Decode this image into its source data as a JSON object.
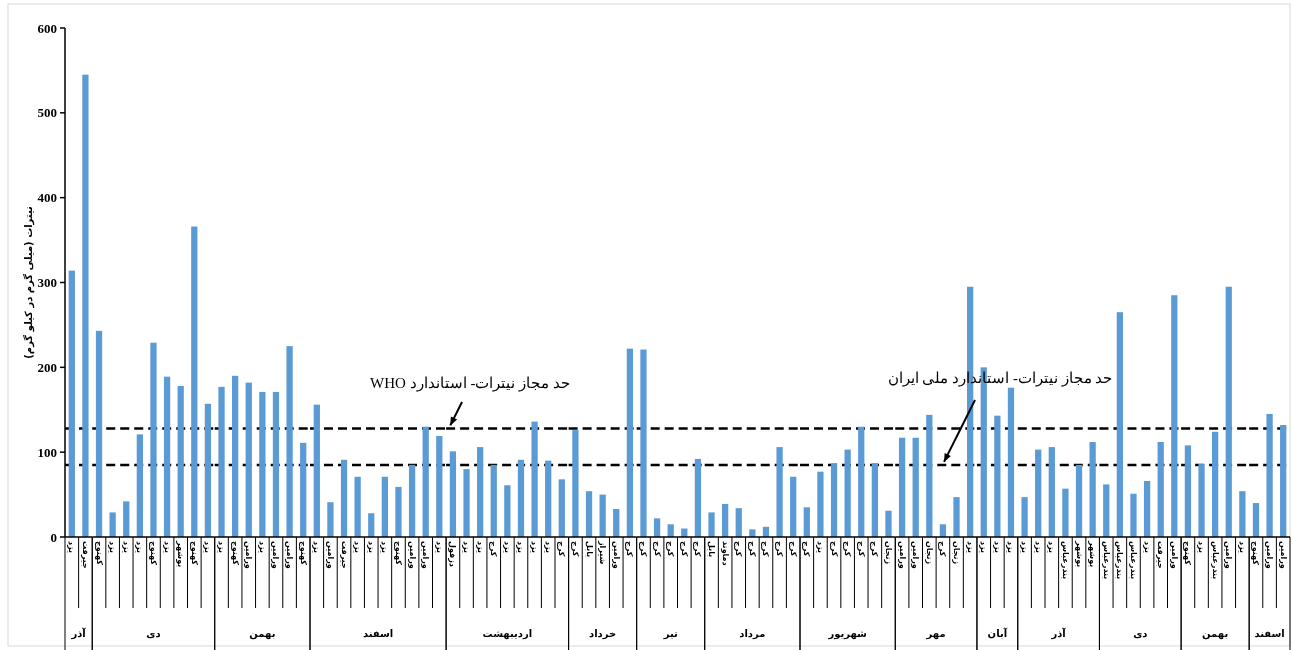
{
  "chart_data": [
    {
      "type": "bar",
      "xlabel": "آذر",
      "ylabel": "نیترات (میلی گرم در کیلو گرم)",
      "categories": [
        "یزد",
        "جیرفت"
      ],
      "values": [
        314,
        545
      ],
      "color": "#5b9bd5",
      "ylim": [
        0,
        600
      ],
      "yticks": [
        0,
        100,
        200,
        300,
        400,
        500,
        600
      ],
      "ref_lines": [
        {
          "axis": "y",
          "value": 128,
          "line_style": "dashed",
          "color": "#000000"
        },
        {
          "axis": "y",
          "value": 85,
          "line_style": "dashed",
          "color": "#000000"
        }
      ]
    },
    {
      "type": "bar",
      "xlabel": "دی",
      "tick_labels": "x",
      "categories": [
        "کهنوج",
        "یزد",
        "یزد",
        "یزد",
        "کهنوج",
        "یزد",
        "بوشهر",
        "کهنوج",
        "یزد"
      ],
      "values": [
        243,
        29,
        42,
        121,
        229,
        189,
        178,
        366,
        157
      ],
      "color": "#5b9bd5",
      "ylim": [
        0,
        600
      ],
      "ref_lines": [
        {
          "axis": "y",
          "value": 128,
          "line_style": "dashed",
          "color": "#000000"
        },
        {
          "axis": "y",
          "value": 85,
          "line_style": "dashed",
          "color": "#000000"
        }
      ]
    },
    {
      "type": "bar",
      "xlabel": "بهمن",
      "tick_labels": "x",
      "categories": [
        "یزد",
        "کهنوج",
        "ورامین",
        "یزد",
        "ورامین",
        "ورامین",
        "کهنوج"
      ],
      "values": [
        177,
        190,
        182,
        171,
        171,
        225,
        111
      ],
      "color": "#5b9bd5",
      "ylim": [
        0,
        600
      ],
      "ref_lines": [
        {
          "axis": "y",
          "value": 128,
          "line_style": "dashed",
          "color": "#000000"
        },
        {
          "axis": "y",
          "value": 85,
          "line_style": "dashed",
          "color": "#000000"
        }
      ]
    },
    {
      "type": "bar",
      "xlabel": "اسفند",
      "tick_labels": "x",
      "categories": [
        "یزد",
        "ورامین",
        "جیرفت",
        "یزد",
        "یزد",
        "یزد",
        "کهنوج",
        "ورامین",
        "ورامین",
        "یزد"
      ],
      "values": [
        156,
        41,
        91,
        71,
        28,
        71,
        59,
        85,
        130,
        119
      ],
      "color": "#5b9bd5",
      "ylim": [
        0,
        600
      ],
      "ref_lines": [
        {
          "axis": "y",
          "value": 128,
          "label": "حد مجاز نیترات- استاندارد WHO",
          "line_style": "dashed",
          "color": "#000000"
        },
        {
          "axis": "y",
          "value": 85,
          "line_style": "dashed",
          "color": "#000000"
        }
      ]
    },
    {
      "type": "bar",
      "xlabel": "اردیبهشت",
      "tick_labels": "x",
      "categories": [
        "دزفول",
        "یزد",
        "یزد",
        "کرج",
        "یزد",
        "یزد",
        "یزد",
        "یزد",
        "کرج"
      ],
      "values": [
        101,
        80,
        106,
        85,
        61,
        91,
        136,
        90,
        68
      ],
      "color": "#5b9bd5",
      "ylim": [
        0,
        600
      ],
      "ref_lines": [
        {
          "axis": "y",
          "value": 128,
          "line_style": "dashed",
          "color": "#000000"
        },
        {
          "axis": "y",
          "value": 85,
          "line_style": "dashed",
          "color": "#000000"
        }
      ]
    },
    {
      "type": "bar",
      "xlabel": "خرداد",
      "tick_labels": "x",
      "categories": [
        "کرج",
        "بابل",
        "شیراز",
        "ورامین",
        "کرج"
      ],
      "values": [
        126,
        54,
        50,
        33,
        222
      ],
      "color": "#5b9bd5",
      "ylim": [
        0,
        600
      ],
      "ref_lines": [
        {
          "axis": "y",
          "value": 128,
          "line_style": "dashed",
          "color": "#000000"
        },
        {
          "axis": "y",
          "value": 85,
          "line_style": "dashed",
          "color": "#000000"
        }
      ]
    },
    {
      "type": "bar",
      "xlabel": "تیر",
      "tick_labels": "x",
      "categories": [
        "کرج",
        "کرج",
        "کرج",
        "کرج",
        "کرج"
      ],
      "values": [
        221,
        22,
        15,
        10,
        92
      ],
      "color": "#5b9bd5",
      "ylim": [
        0,
        600
      ],
      "ref_lines": [
        {
          "axis": "y",
          "value": 128,
          "line_style": "dashed",
          "color": "#000000"
        },
        {
          "axis": "y",
          "value": 85,
          "line_style": "dashed",
          "color": "#000000"
        }
      ]
    },
    {
      "type": "bar",
      "xlabel": "مرداد",
      "tick_labels": "x",
      "categories": [
        "بابل",
        "دماوند",
        "کرج",
        "کرج",
        "کرج",
        "کرج",
        "کرج"
      ],
      "values": [
        29,
        39,
        34,
        9,
        12,
        106,
        71
      ],
      "color": "#5b9bd5",
      "ylim": [
        0,
        600
      ],
      "ref_lines": [
        {
          "axis": "y",
          "value": 128,
          "line_style": "dashed",
          "color": "#000000"
        },
        {
          "axis": "y",
          "value": 85,
          "line_style": "dashed",
          "color": "#000000"
        }
      ]
    },
    {
      "type": "bar",
      "xlabel": "شهریور",
      "tick_labels": "x",
      "categories": [
        "کرج",
        "یزد",
        "کرج",
        "کرج",
        "کرج",
        "کرج",
        "زنجان"
      ],
      "values": [
        35,
        77,
        87,
        103,
        130,
        87,
        31
      ],
      "color": "#5b9bd5",
      "ylim": [
        0,
        600
      ],
      "ref_lines": [
        {
          "axis": "y",
          "value": 128,
          "line_style": "dashed",
          "color": "#000000"
        },
        {
          "axis": "y",
          "value": 85,
          "line_style": "dashed",
          "color": "#000000"
        }
      ]
    },
    {
      "type": "bar",
      "xlabel": "مهر",
      "tick_labels": "x",
      "categories": [
        "ورامین",
        "ورامین",
        "زنجان",
        "کرج",
        "زنجان",
        "یزد"
      ],
      "values": [
        117,
        117,
        144,
        15,
        47,
        295
      ],
      "color": "#5b9bd5",
      "ylim": [
        0,
        600
      ],
      "ref_lines": [
        {
          "axis": "y",
          "value": 128,
          "line_style": "dashed",
          "color": "#000000"
        },
        {
          "axis": "y",
          "value": 85,
          "label": "حد مجاز نیترات- استاندارد ملی ایران",
          "line_style": "dashed",
          "color": "#000000"
        }
      ]
    },
    {
      "type": "bar",
      "xlabel": "آبان",
      "tick_labels": "x",
      "categories": [
        "یزد",
        "یزد",
        "یزد"
      ],
      "values": [
        200,
        143,
        176
      ],
      "color": "#5b9bd5",
      "ylim": [
        0,
        600
      ],
      "ref_lines": [
        {
          "axis": "y",
          "value": 128,
          "line_style": "dashed",
          "color": "#000000"
        },
        {
          "axis": "y",
          "value": 85,
          "line_style": "dashed",
          "color": "#000000"
        }
      ]
    },
    {
      "type": "bar",
      "xlabel": "آذر",
      "tick_labels": "x",
      "categories": [
        "یزد",
        "یزد",
        "یزد",
        "بندرعباس",
        "بوشهر",
        "بوشهر"
      ],
      "values": [
        47,
        103,
        106,
        57,
        85,
        112
      ],
      "color": "#5b9bd5",
      "ylim": [
        0,
        600
      ],
      "ref_lines": [
        {
          "axis": "y",
          "value": 128,
          "line_style": "dashed",
          "color": "#000000"
        },
        {
          "axis": "y",
          "value": 85,
          "line_style": "dashed",
          "color": "#000000"
        }
      ]
    },
    {
      "type": "bar",
      "xlabel": "دی",
      "tick_labels": "x",
      "categories": [
        "بندرعباس",
        "بندرعباس",
        "بندرعباس",
        "یزد",
        "جیرفت",
        "ورامین"
      ],
      "values": [
        62,
        265,
        51,
        66,
        112,
        285
      ],
      "color": "#5b9bd5",
      "ylim": [
        0,
        600
      ],
      "ref_lines": [
        {
          "axis": "y",
          "value": 128,
          "line_style": "dashed",
          "color": "#000000"
        },
        {
          "axis": "y",
          "value": 85,
          "line_style": "dashed",
          "color": "#000000"
        }
      ]
    },
    {
      "type": "bar",
      "xlabel": "بهمن",
      "tick_labels": "x",
      "categories": [
        "کهنوج",
        "یزد",
        "بندرعباس",
        "ورامین",
        "یزد"
      ],
      "values": [
        108,
        86,
        124,
        295,
        54
      ],
      "color": "#5b9bd5",
      "ylim": [
        0,
        600
      ],
      "ref_lines": [
        {
          "axis": "y",
          "value": 128,
          "line_style": "dashed",
          "color": "#000000"
        },
        {
          "axis": "y",
          "value": 85,
          "line_style": "dashed",
          "color": "#000000"
        }
      ]
    },
    {
      "type": "bar",
      "xlabel": "اسفند",
      "tick_labels": "x",
      "categories": [
        "کهنوج",
        "ورامین",
        "ورامین"
      ],
      "values": [
        40,
        145,
        132
      ],
      "color": "#5b9bd5",
      "ylim": [
        0,
        600
      ],
      "ref_lines": [
        {
          "axis": "y",
          "value": 128,
          "line_style": "dashed",
          "color": "#000000"
        },
        {
          "axis": "y",
          "value": 85,
          "line_style": "dashed",
          "color": "#000000"
        }
      ]
    }
  ]
}
